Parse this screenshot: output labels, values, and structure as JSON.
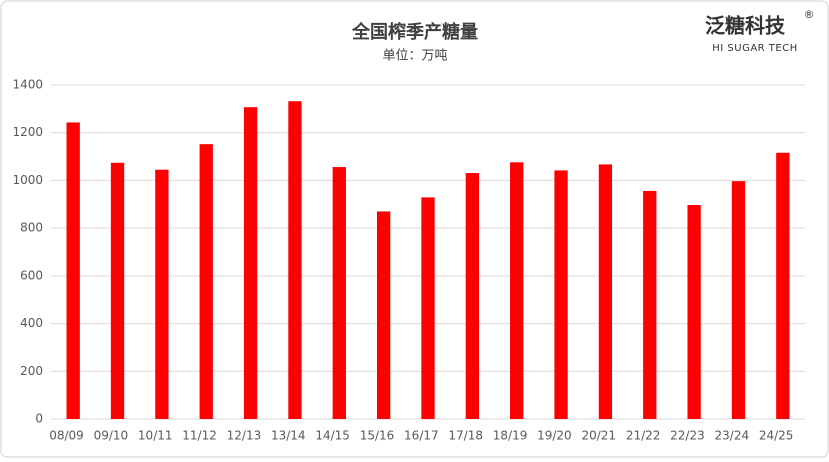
{
  "chart_data": {
    "type": "bar",
    "title": "全国榨季产糖量",
    "subtitle": "单位：万吨",
    "categories": [
      "08/09",
      "09/10",
      "10/11",
      "11/12",
      "12/13",
      "13/14",
      "14/15",
      "15/16",
      "16/17",
      "17/18",
      "18/19",
      "19/20",
      "20/21",
      "21/22",
      "22/23",
      "23/24",
      "24/25"
    ],
    "values": [
      1243,
      1074,
      1045,
      1152,
      1307,
      1332,
      1056,
      870,
      929,
      1031,
      1076,
      1042,
      1067,
      956,
      897,
      997,
      1116
    ],
    "color": "#ff0000",
    "ylim": [
      0,
      1400
    ],
    "yticks": [
      0,
      200,
      400,
      600,
      800,
      1000,
      1200,
      1400
    ],
    "grid": true
  },
  "logo": {
    "name": "泛糖科技",
    "mark": "®",
    "tagline": "HI SUGAR TECH"
  }
}
